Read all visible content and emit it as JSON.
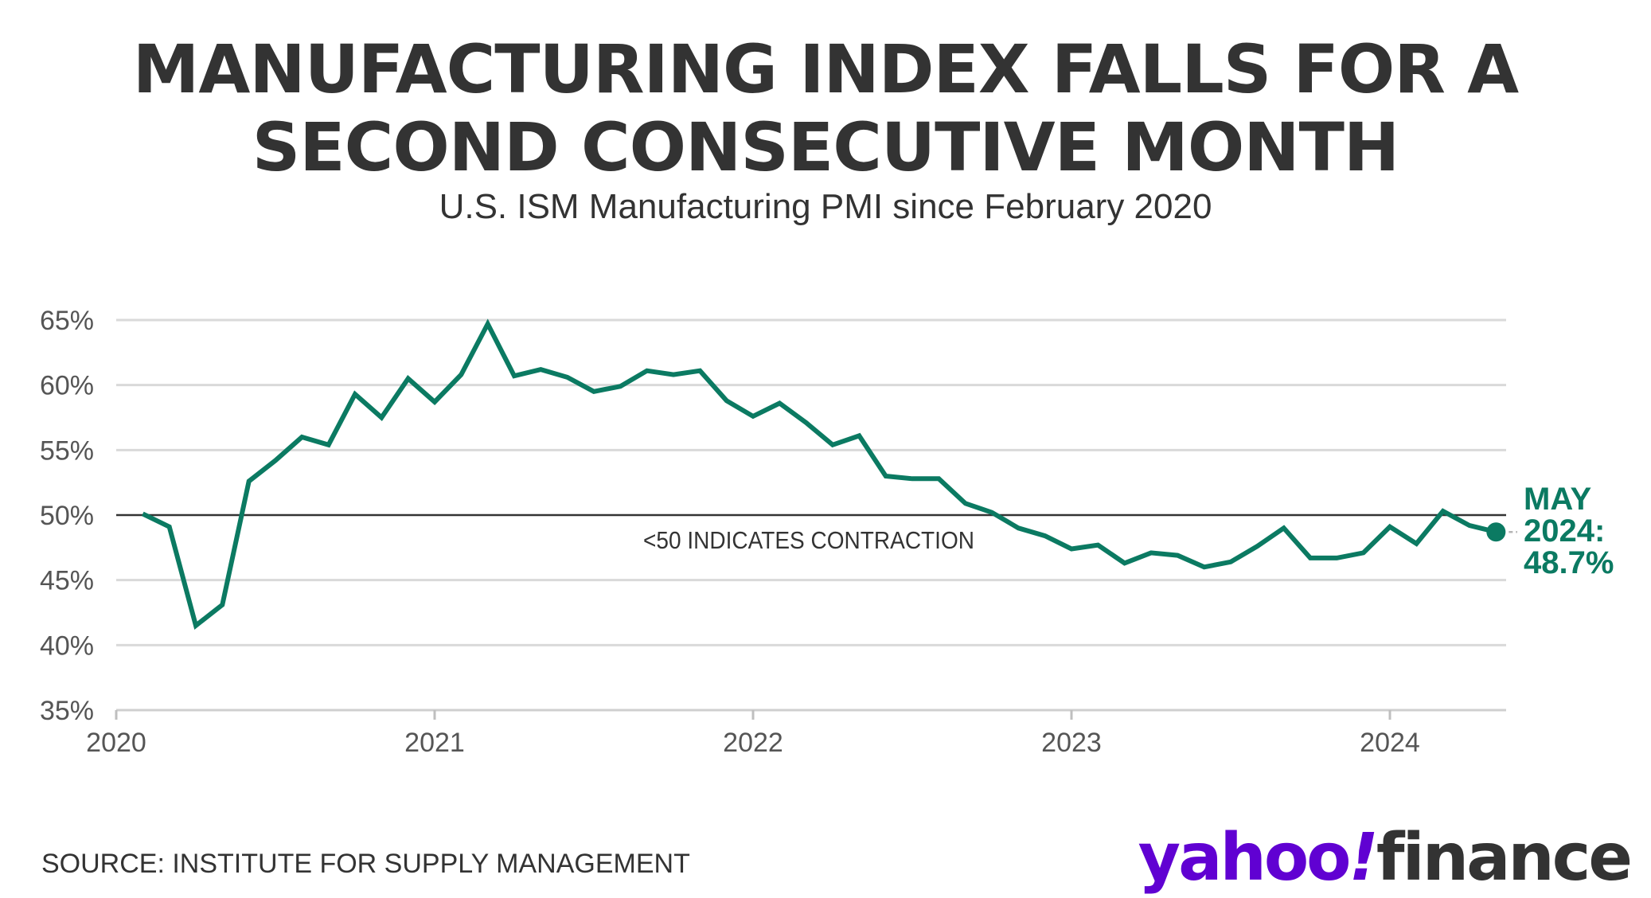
{
  "title_line1": "MANUFACTURING INDEX FALLS FOR A",
  "title_line2": "SECOND CONSECUTIVE MONTH",
  "subtitle": "U.S. ISM Manufacturing PMI since February 2020",
  "source": "SOURCE: INSTITUTE FOR SUPPLY MANAGEMENT",
  "logo": {
    "part1": "yahoo",
    "part2": "!",
    "part3": "finance"
  },
  "colors": {
    "line": "#0b7a62",
    "text": "#333333",
    "grid": "#d9d9d9",
    "brand": "#6001d2"
  },
  "chart_data": {
    "type": "line",
    "title": "MANUFACTURING INDEX FALLS FOR A SECOND CONSECUTIVE MONTH",
    "subtitle": "U.S. ISM Manufacturing PMI since February 2020",
    "xlabel": "",
    "ylabel": "",
    "ylim": [
      35,
      65
    ],
    "yticks": [
      35,
      40,
      45,
      50,
      55,
      60,
      65
    ],
    "ytick_labels": [
      "35%",
      "40%",
      "45%",
      "50%",
      "55%",
      "60%",
      "65%"
    ],
    "xticks": [
      2020,
      2021,
      2022,
      2023,
      2024
    ],
    "xtick_labels": [
      "2020",
      "2021",
      "2022",
      "2023",
      "2024"
    ],
    "grid": true,
    "reference_line": {
      "y": 50,
      "label": "<50 INDICATES CONTRACTION"
    },
    "annotation": {
      "line1": "MAY",
      "line2": "2024:",
      "line3": "48.7%"
    },
    "x": [
      "2020-02",
      "2020-03",
      "2020-04",
      "2020-05",
      "2020-06",
      "2020-07",
      "2020-08",
      "2020-09",
      "2020-10",
      "2020-11",
      "2020-12",
      "2021-01",
      "2021-02",
      "2021-03",
      "2021-04",
      "2021-05",
      "2021-06",
      "2021-07",
      "2021-08",
      "2021-09",
      "2021-10",
      "2021-11",
      "2021-12",
      "2022-01",
      "2022-02",
      "2022-03",
      "2022-04",
      "2022-05",
      "2022-06",
      "2022-07",
      "2022-08",
      "2022-09",
      "2022-10",
      "2022-11",
      "2022-12",
      "2023-01",
      "2023-02",
      "2023-03",
      "2023-04",
      "2023-05",
      "2023-06",
      "2023-07",
      "2023-08",
      "2023-09",
      "2023-10",
      "2023-11",
      "2023-12",
      "2024-01",
      "2024-02",
      "2024-03",
      "2024-04",
      "2024-05"
    ],
    "series": [
      {
        "values": [
          50.1,
          49.1,
          41.5,
          43.1,
          52.6,
          54.2,
          56.0,
          55.4,
          59.3,
          57.5,
          60.5,
          58.7,
          60.8,
          64.7,
          60.7,
          61.2,
          60.6,
          59.5,
          59.9,
          61.1,
          60.8,
          61.1,
          58.8,
          57.6,
          58.6,
          57.1,
          55.4,
          56.1,
          53.0,
          52.8,
          52.8,
          50.9,
          50.2,
          49.0,
          48.4,
          47.4,
          47.7,
          46.3,
          47.1,
          46.9,
          46.0,
          46.4,
          47.6,
          49.0,
          46.7,
          46.7,
          47.1,
          49.1,
          47.8,
          50.3,
          49.2,
          48.7
        ]
      }
    ]
  }
}
